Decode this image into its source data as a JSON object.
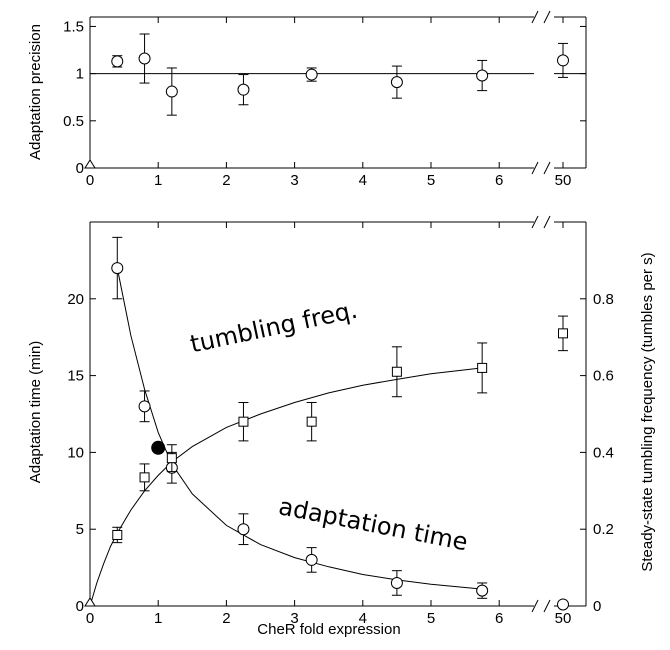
{
  "chart_data": [
    {
      "type": "scatter",
      "xlabel": "",
      "ylabel": "Adaptation precision",
      "x_ticks": [
        "0",
        "1",
        "2",
        "3",
        "4",
        "5",
        "6",
        "50"
      ],
      "y_ticks": [
        "0",
        "0.5",
        "1",
        "1.5"
      ],
      "xlim": [
        0,
        6.5
      ],
      "x_break": {
        "after": 6.5,
        "right_value": 50
      },
      "ylim": [
        0,
        1.6
      ],
      "reference_line": 1,
      "series": [
        {
          "marker": "circle",
          "points": [
            {
              "x": 0.4,
              "y": 1.13,
              "err": 0.06
            },
            {
              "x": 0.8,
              "y": 1.16,
              "err": 0.26
            },
            {
              "x": 1.2,
              "y": 0.81,
              "err": 0.25
            },
            {
              "x": 2.25,
              "y": 0.83,
              "err": 0.16
            },
            {
              "x": 3.25,
              "y": 0.99,
              "err": 0.07
            },
            {
              "x": 4.5,
              "y": 0.91,
              "err": 0.17
            },
            {
              "x": 5.75,
              "y": 0.98,
              "err": 0.16
            },
            {
              "x": 50,
              "y": 1.14,
              "err": 0.18
            }
          ]
        },
        {
          "marker": "triangle",
          "points": [
            {
              "x": 0,
              "y": 0,
              "err": 0
            }
          ]
        }
      ]
    },
    {
      "type": "scatter",
      "xlabel": "CheR fold expression",
      "ylabel": "Adaptation time (min)",
      "y2label": "Steady-state tumbling frequency (tumbles per s)",
      "x_ticks": [
        "0",
        "1",
        "2",
        "3",
        "4",
        "5",
        "6",
        "50"
      ],
      "y_ticks": [
        "0",
        "5",
        "10",
        "15",
        "20"
      ],
      "y2_ticks": [
        "0",
        "0.2",
        "0.4",
        "0.6",
        "0.8"
      ],
      "xlim": [
        0,
        6.5
      ],
      "x_break": {
        "after": 6.5,
        "right_value": 50
      },
      "ylim": [
        0,
        25
      ],
      "y2lim": [
        0,
        1.0
      ],
      "annotations": [
        {
          "text": "tumbling freq.",
          "x": 1.5,
          "y": 16.5
        },
        {
          "text": "adaptation time",
          "x": 2.75,
          "y": 6.0
        }
      ],
      "series": [
        {
          "axis": "left",
          "marker": "circle",
          "points": [
            {
              "x": 0.4,
              "y": 22.0,
              "err": 2.0
            },
            {
              "x": 0.8,
              "y": 13.0,
              "err": 1.0
            },
            {
              "x": 1.2,
              "y": 9.0,
              "err": 1.0
            },
            {
              "x": 2.25,
              "y": 5.0,
              "err": 1.0
            },
            {
              "x": 3.25,
              "y": 3.0,
              "err": 0.8
            },
            {
              "x": 4.5,
              "y": 1.5,
              "err": 0.8
            },
            {
              "x": 5.75,
              "y": 1.0,
              "err": 0.5
            },
            {
              "x": 50,
              "y": 0.1,
              "err": 0
            }
          ],
          "fit": {
            "type": "exp_decay",
            "curve": [
              [
                0.4,
                22.0
              ],
              [
                0.6,
                17.6
              ],
              [
                0.8,
                14.1
              ],
              [
                1.0,
                11.3
              ],
              [
                1.2,
                9.25
              ],
              [
                1.5,
                7.3
              ],
              [
                2.0,
                5.25
              ],
              [
                2.5,
                4.0
              ],
              [
                3.0,
                3.15
              ],
              [
                3.5,
                2.55
              ],
              [
                4.0,
                2.05
              ],
              [
                4.5,
                1.7
              ],
              [
                5.0,
                1.42
              ],
              [
                5.75,
                1.1
              ]
            ]
          }
        },
        {
          "axis": "right",
          "marker": "square",
          "points": [
            {
              "x": 0.4,
              "y": 0.185,
              "err": 0.02
            },
            {
              "x": 0.8,
              "y": 0.335,
              "err": 0.035
            },
            {
              "x": 1.2,
              "y": 0.385,
              "err": 0.035
            },
            {
              "x": 2.25,
              "y": 0.48,
              "err": 0.05
            },
            {
              "x": 3.25,
              "y": 0.48,
              "err": 0.05
            },
            {
              "x": 4.5,
              "y": 0.61,
              "err": 0.065
            },
            {
              "x": 5.75,
              "y": 0.62,
              "err": 0.065
            },
            {
              "x": 50,
              "y": 0.71,
              "err": 0.045
            }
          ],
          "fit": {
            "type": "saturating",
            "curve": [
              [
                0,
                0
              ],
              [
                0.1,
                0.06
              ],
              [
                0.2,
                0.11
              ],
              [
                0.3,
                0.155
              ],
              [
                0.4,
                0.19
              ],
              [
                0.5,
                0.22
              ],
              [
                0.6,
                0.25
              ],
              [
                0.8,
                0.3
              ],
              [
                1.0,
                0.34
              ],
              [
                1.2,
                0.375
              ],
              [
                1.5,
                0.415
              ],
              [
                2.0,
                0.465
              ],
              [
                2.5,
                0.5
              ],
              [
                3.0,
                0.53
              ],
              [
                3.5,
                0.555
              ],
              [
                4.0,
                0.575
              ],
              [
                4.5,
                0.59
              ],
              [
                5.0,
                0.605
              ],
              [
                5.75,
                0.62
              ]
            ]
          }
        },
        {
          "axis": "left",
          "marker": "filled-circle",
          "points": [
            {
              "x": 1.0,
              "y": 10.3,
              "err": 0
            }
          ]
        },
        {
          "axis": "left",
          "marker": "triangle",
          "points": [
            {
              "x": 0,
              "y": 0,
              "err": 0
            }
          ]
        }
      ]
    }
  ]
}
